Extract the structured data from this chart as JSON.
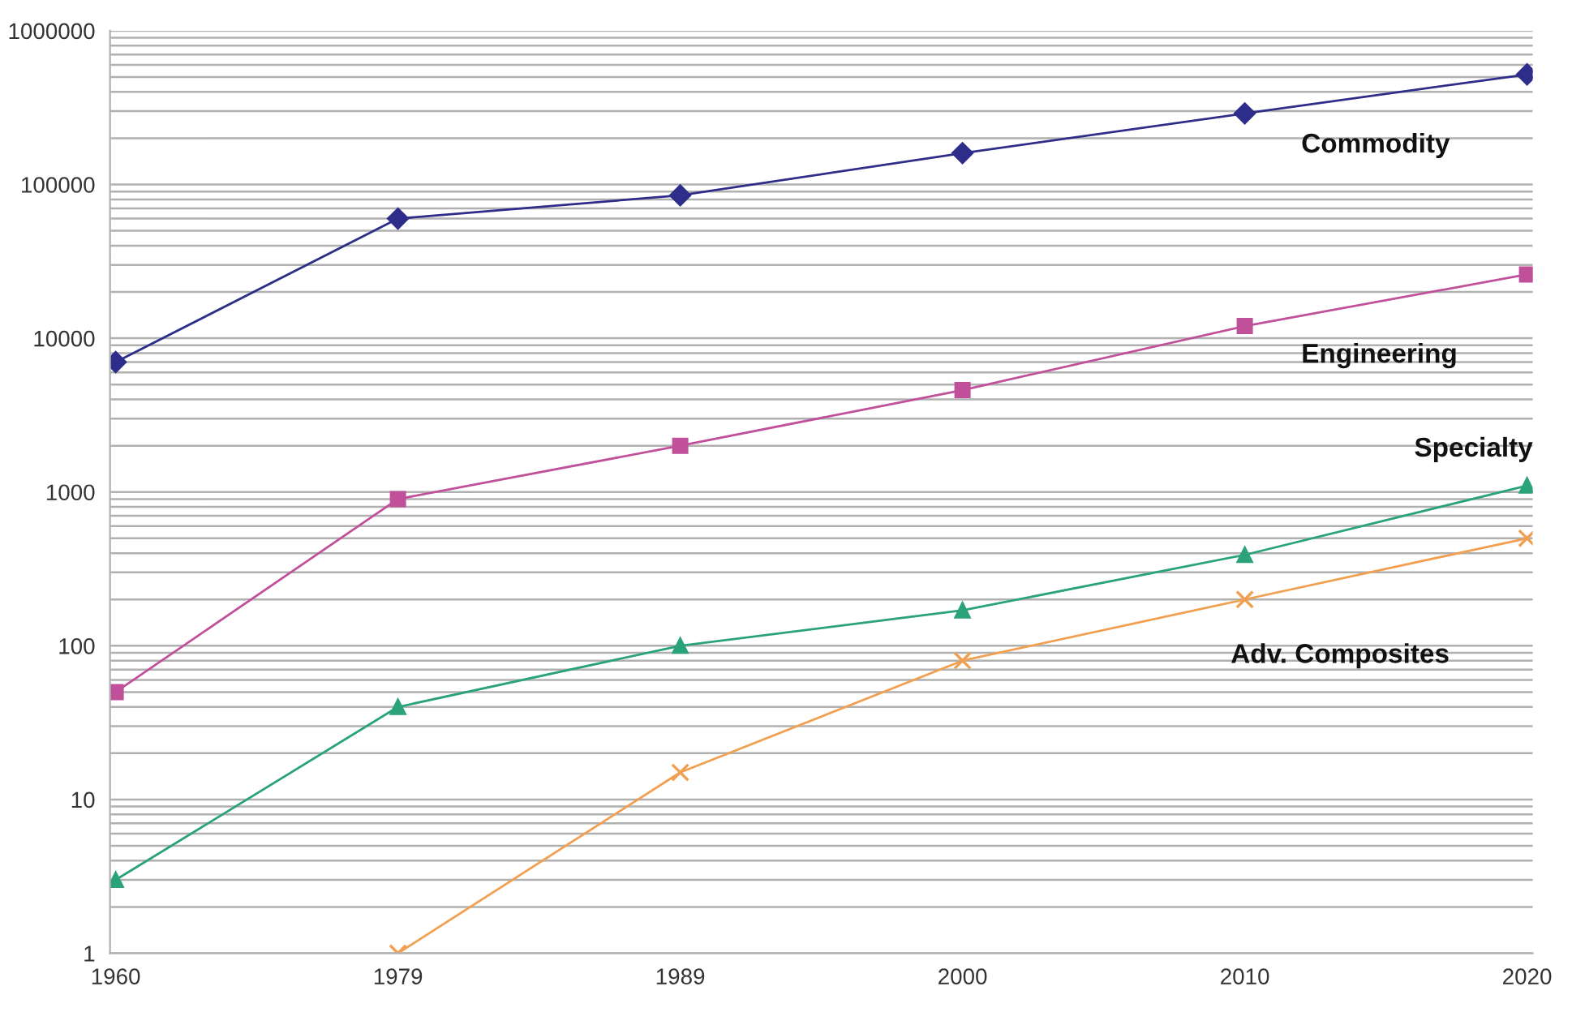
{
  "chart_data": {
    "type": "line",
    "log": "y",
    "grid": "y",
    "categories": [
      "1960",
      "1979",
      "1989",
      "2000",
      "2010",
      "2020"
    ],
    "ylim": [
      1,
      1000000
    ],
    "yticks": [
      1,
      10,
      100,
      1000,
      10000,
      100000,
      1000000
    ],
    "series": [
      {
        "name": "Commodity",
        "color": "#2e2e8a",
        "marker": "diamond",
        "values": [
          7000,
          60000,
          85000,
          160000,
          290000,
          520000
        ]
      },
      {
        "name": "Engineering",
        "color": "#c0509a",
        "marker": "square",
        "values": [
          50,
          900,
          2000,
          4600,
          12000,
          26000
        ]
      },
      {
        "name": "Specialty",
        "color": "#2aa37a",
        "marker": "triangle",
        "values": [
          3,
          40,
          100,
          170,
          390,
          1100
        ]
      },
      {
        "name": "Adv. Composites",
        "color": "#f0a050",
        "marker": "cross",
        "values": [
          null,
          1,
          15,
          80,
          200,
          500
        ]
      }
    ]
  }
}
